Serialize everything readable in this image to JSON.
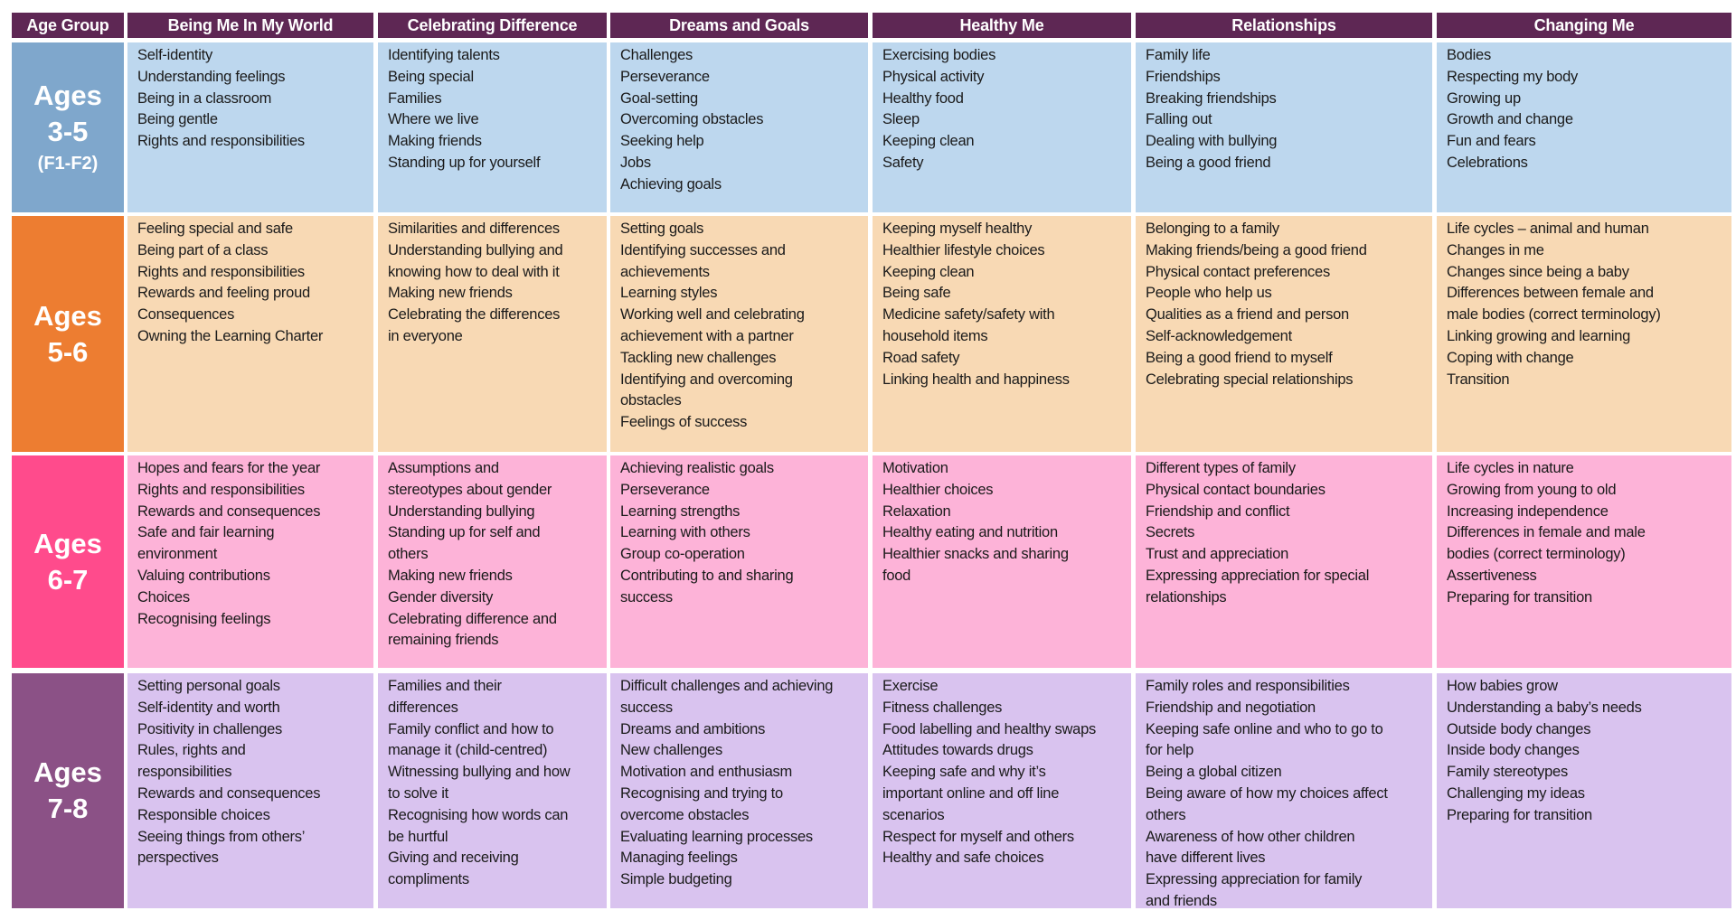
{
  "table": {
    "headers": [
      "Age Group",
      "Being Me In My World",
      "Celebrating Difference",
      "Dreams and Goals",
      "Healthy Me",
      "Relationships",
      "Changing Me"
    ],
    "rows": [
      {
        "age_line1": "Ages",
        "age_line2": "3-5",
        "age_line3": "(F1-F2)",
        "age_color": "#7FA7CC",
        "cell_color": "#BDD7EE",
        "cells": [
          [
            "Self-identity",
            "Understanding feelings",
            "Being in a classroom",
            "Being gentle",
            "Rights and responsibilities"
          ],
          [
            "Identifying talents",
            "Being special",
            "Families",
            "Where we live",
            "Making friends",
            "Standing up for yourself"
          ],
          [
            "Challenges",
            "Perseverance",
            "Goal-setting",
            "Overcoming obstacles",
            "Seeking help",
            "Jobs",
            "Achieving goals"
          ],
          [
            "Exercising bodies",
            "Physical activity",
            "Healthy food",
            "Sleep",
            "Keeping clean",
            "Safety"
          ],
          [
            "Family life",
            "Friendships",
            "Breaking friendships",
            "Falling out",
            "Dealing with bullying",
            "Being a good friend"
          ],
          [
            "Bodies",
            "Respecting my body",
            "Growing up",
            "Growth and change",
            "Fun and fears",
            "Celebrations"
          ]
        ]
      },
      {
        "age_line1": "Ages",
        "age_line2": "5-6",
        "age_color": "#ED7D31",
        "cell_color": "#F8D9B4",
        "cells": [
          [
            "Feeling special and safe",
            "Being part of a class",
            "Rights and responsibilities",
            "Rewards and feeling proud",
            "Consequences",
            "Owning the Learning Charter"
          ],
          [
            "Similarities and differences",
            "Understanding bullying and",
            "knowing how to deal with it",
            "Making new friends",
            "Celebrating the differences",
            "in everyone"
          ],
          [
            "Setting goals",
            "Identifying successes and",
            "achievements",
            "Learning styles",
            "Working well and celebrating",
            "achievement with a partner",
            "Tackling new challenges",
            "Identifying and overcoming",
            "obstacles",
            "Feelings of success"
          ],
          [
            "Keeping myself healthy",
            "Healthier lifestyle choices",
            "Keeping clean",
            "Being safe",
            "Medicine safety/safety with",
            "household items",
            "Road safety",
            "Linking health and happiness"
          ],
          [
            "Belonging to a family",
            "Making friends/being a good friend",
            "Physical contact preferences",
            "People who help us",
            "Qualities as a friend and person",
            "Self-acknowledgement",
            "Being a good friend to myself",
            "Celebrating special relationships"
          ],
          [
            "Life cycles – animal and human",
            "Changes in me",
            "Changes since being a baby",
            "Differences between female and",
            "male bodies (correct terminology)",
            "Linking growing and learning",
            "Coping with change",
            "Transition"
          ]
        ]
      },
      {
        "age_line1": "Ages",
        "age_line2": "6-7",
        "age_color": "#FF4B8C",
        "cell_color": "#FDB3D8",
        "cells": [
          [
            "Hopes and fears for the year",
            "Rights and responsibilities",
            "Rewards and consequences",
            "Safe and fair learning",
            "environment",
            "Valuing contributions",
            "Choices",
            "Recognising feelings"
          ],
          [
            "Assumptions and",
            "stereotypes about gender",
            "Understanding bullying",
            "Standing up for self and",
            "others",
            "Making new friends",
            "Gender diversity",
            "Celebrating difference and",
            "remaining friends"
          ],
          [
            "Achieving realistic goals",
            "Perseverance",
            "Learning strengths",
            "Learning with others",
            "Group co-operation",
            "Contributing to and sharing",
            "success"
          ],
          [
            "Motivation",
            "Healthier choices",
            "Relaxation",
            "Healthy eating and nutrition",
            "Healthier snacks and sharing",
            "food"
          ],
          [
            "Different types of family",
            "Physical contact boundaries",
            "Friendship and conflict",
            "Secrets",
            "Trust and appreciation",
            "Expressing appreciation for special",
            "relationships"
          ],
          [
            "Life cycles in nature",
            "Growing from young to old",
            "Increasing independence",
            "Differences in female and male",
            "bodies (correct terminology)",
            "Assertiveness",
            "Preparing for transition"
          ]
        ]
      },
      {
        "age_line1": "Ages",
        "age_line2": "7-8",
        "age_color": "#8B5186",
        "cell_color": "#D9C3EF",
        "cells": [
          [
            "Setting personal goals",
            "Self-identity and worth",
            "Positivity in challenges",
            "Rules, rights and",
            "responsibilities",
            "Rewards and consequences",
            "Responsible choices",
            "Seeing things from others’",
            "perspectives"
          ],
          [
            "Families and their",
            "differences",
            "Family conflict and how to",
            "manage it (child-centred)",
            "Witnessing bullying and how",
            "to solve it",
            "Recognising how words can",
            "be hurtful",
            "Giving and receiving",
            "compliments"
          ],
          [
            "Difficult challenges and achieving",
            "success",
            "Dreams and ambitions",
            "New challenges",
            "Motivation and enthusiasm",
            "Recognising and trying to",
            "overcome obstacles",
            "Evaluating learning processes",
            "Managing feelings",
            "Simple budgeting"
          ],
          [
            "Exercise",
            "Fitness challenges",
            "Food labelling and healthy swaps",
            "Attitudes towards drugs",
            "Keeping safe and why it’s",
            "important online and off line",
            "scenarios",
            "Respect for myself and others",
            "Healthy and safe choices"
          ],
          [
            "Family roles and responsibilities",
            "Friendship and negotiation",
            "Keeping safe online and who to go to",
            "for help",
            "Being a global citizen",
            "Being aware of how my choices affect",
            "others",
            "Awareness of how other children",
            "have different lives",
            "Expressing appreciation for family",
            "and friends"
          ],
          [
            "How babies grow",
            "Understanding a baby’s needs",
            "Outside body changes",
            "Inside body changes",
            "Family stereotypes",
            "Challenging my ideas",
            "Preparing for transition"
          ]
        ]
      }
    ]
  },
  "colors": {
    "header_bg": "#5E2754",
    "header_text": "#FFFFFF",
    "body_text": "#1A1A1A"
  }
}
